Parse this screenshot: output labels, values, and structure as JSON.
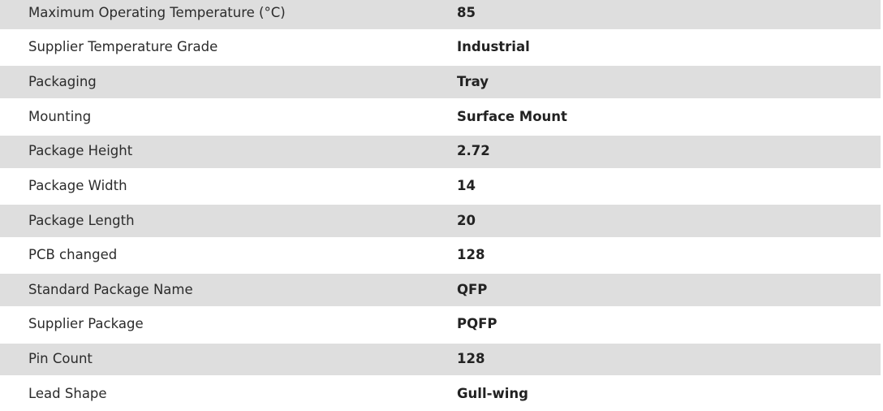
{
  "specs": [
    {
      "label": "Maximum Operating Temperature (°C)",
      "value": "85"
    },
    {
      "label": "Supplier Temperature Grade",
      "value": "Industrial"
    },
    {
      "label": "Packaging",
      "value": "Tray"
    },
    {
      "label": "Mounting",
      "value": "Surface Mount"
    },
    {
      "label": "Package Height",
      "value": "2.72"
    },
    {
      "label": "Package Width",
      "value": "14"
    },
    {
      "label": "Package Length",
      "value": "20"
    },
    {
      "label": "PCB changed",
      "value": "128"
    },
    {
      "label": "Standard Package Name",
      "value": "QFP"
    },
    {
      "label": "Supplier Package",
      "value": "PQFP"
    },
    {
      "label": "Pin Count",
      "value": "128"
    },
    {
      "label": "Lead Shape",
      "value": "Gull-wing"
    }
  ],
  "colors": {
    "stripe": "#dedede",
    "background": "#ffffff"
  }
}
